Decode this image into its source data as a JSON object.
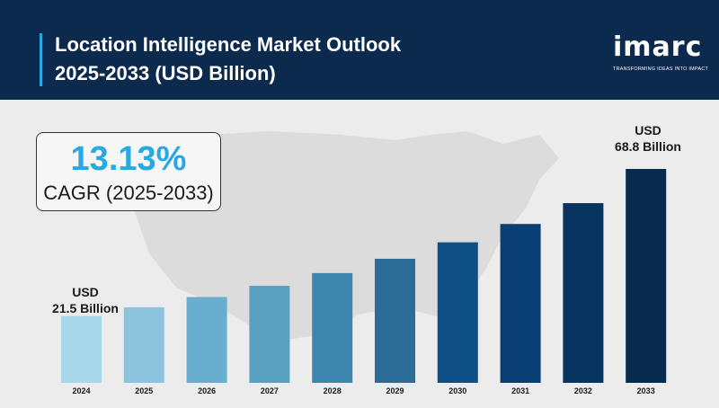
{
  "header": {
    "title_line1": "Location Intelligence Market Outlook",
    "title_line2": "2025-2033 (USD Billion)"
  },
  "logo": {
    "word": "imarc",
    "tagline": "TRANSFORMING IDEAS INTO IMPACT"
  },
  "cagr": {
    "value": "13.13%",
    "label": "CAGR (2025-2033)"
  },
  "annotations": {
    "first_line1": "USD",
    "first_line2": "21.5 Billion",
    "last_line1": "USD",
    "last_line2": "68.8 Billion"
  },
  "colors": {
    "header_bg": "#0b2a4e",
    "accent": "#29a9e1",
    "bar_colors": [
      "#a9d7ea",
      "#8cc4de",
      "#6aaecf",
      "#5aa0c1",
      "#3d86ad",
      "#2c6d98",
      "#0e4f86",
      "#093f74",
      "#07335f",
      "#082a4c"
    ]
  },
  "chart_data": {
    "type": "bar",
    "categories": [
      "2024",
      "2025",
      "2026",
      "2027",
      "2028",
      "2029",
      "2030",
      "2031",
      "2032",
      "2033"
    ],
    "values": [
      21.5,
      24.3,
      27.6,
      31.2,
      35.3,
      39.9,
      45.2,
      51.1,
      57.8,
      68.8
    ],
    "title": "Location Intelligence Market Outlook 2025-2033 (USD Billion)",
    "xlabel": "",
    "ylabel": "",
    "ylim": [
      0,
      70
    ],
    "grid": false,
    "legend": "none"
  }
}
